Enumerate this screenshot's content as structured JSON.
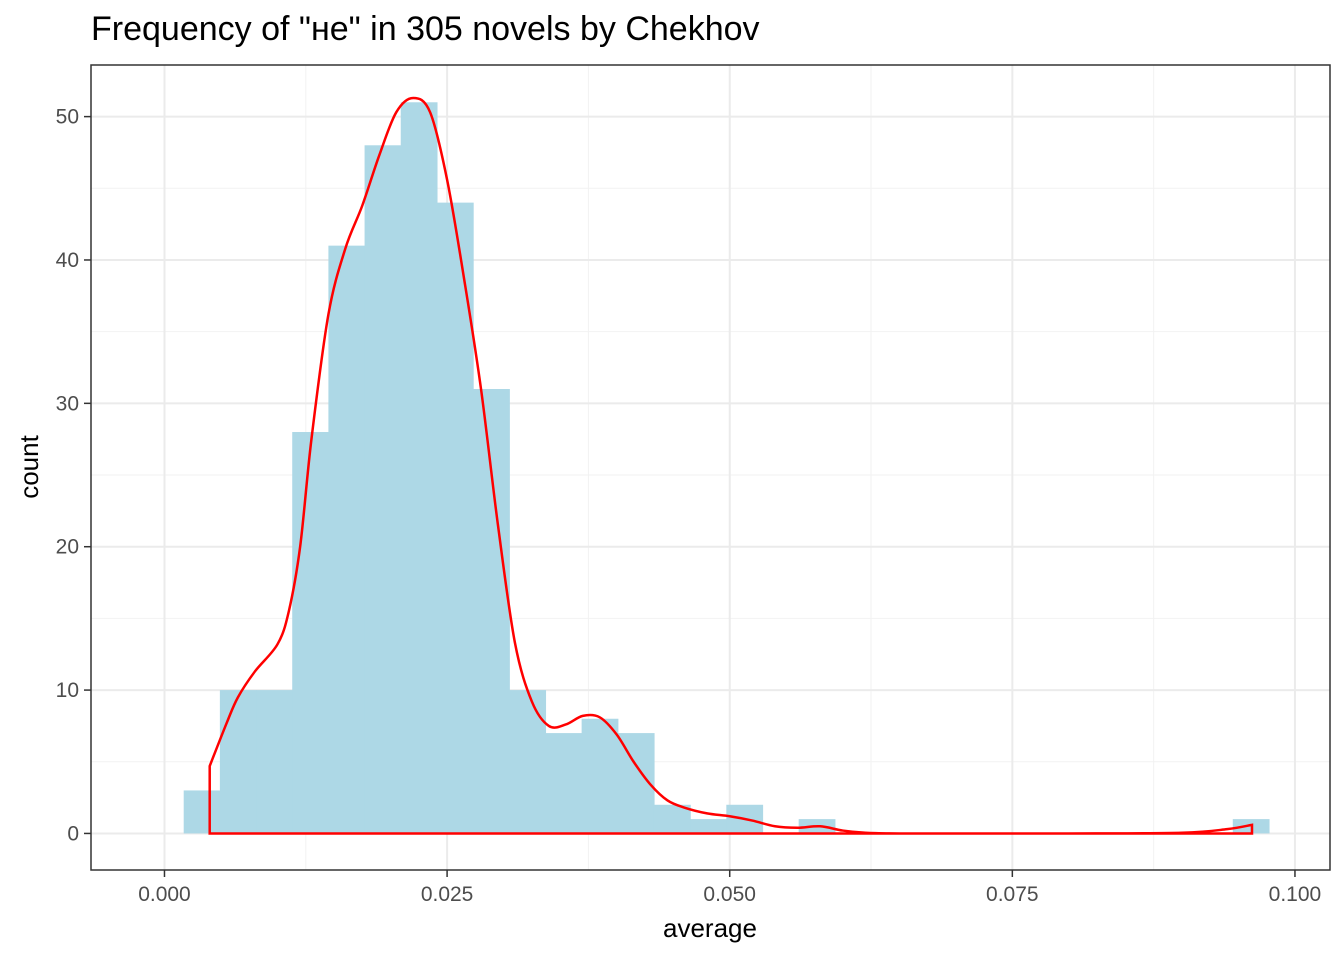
{
  "chart_data": {
    "type": "bar",
    "title": "Frequency of \"не\" in 305 novels by Chekhov",
    "xlabel": "average",
    "ylabel": "count",
    "xlim": [
      -0.0065,
      0.1031
    ],
    "ylim": [
      -2.55,
      53.6
    ],
    "x_ticks": [
      "0.000",
      "0.025",
      "0.050",
      "0.075",
      "0.100"
    ],
    "x_tick_values": [
      0,
      0.025,
      0.05,
      0.075,
      0.1
    ],
    "y_ticks": [
      "0",
      "10",
      "20",
      "30",
      "40",
      "50"
    ],
    "y_tick_values": [
      0,
      10,
      20,
      30,
      40,
      50
    ],
    "grid": true,
    "bin_width": 0.0032,
    "bins": [
      {
        "x0": 0.0017,
        "count": 3
      },
      {
        "x0": 0.0049,
        "count": 10
      },
      {
        "x0": 0.0081,
        "count": 10
      },
      {
        "x0": 0.0113,
        "count": 28
      },
      {
        "x0": 0.0145,
        "count": 41
      },
      {
        "x0": 0.0177,
        "count": 48
      },
      {
        "x0": 0.0209,
        "count": 51
      },
      {
        "x0": 0.0241,
        "count": 44
      },
      {
        "x0": 0.0273,
        "count": 31
      },
      {
        "x0": 0.0305,
        "count": 10
      },
      {
        "x0": 0.0337,
        "count": 7
      },
      {
        "x0": 0.0369,
        "count": 8
      },
      {
        "x0": 0.0401,
        "count": 7
      },
      {
        "x0": 0.0433,
        "count": 2
      },
      {
        "x0": 0.0465,
        "count": 1
      },
      {
        "x0": 0.0497,
        "count": 2
      },
      {
        "x0": 0.0529,
        "count": 0
      },
      {
        "x0": 0.0561,
        "count": 1
      },
      {
        "x0": 0.0945,
        "count": 1
      }
    ],
    "density_curve": {
      "color": "#ff0000",
      "x": [
        0.004,
        0.0055,
        0.0065,
        0.008,
        0.01,
        0.011,
        0.012,
        0.013,
        0.0145,
        0.016,
        0.0175,
        0.019,
        0.0205,
        0.022,
        0.0235,
        0.025,
        0.0265,
        0.028,
        0.0295,
        0.031,
        0.0325,
        0.034,
        0.0355,
        0.037,
        0.0385,
        0.04,
        0.0415,
        0.043,
        0.0445,
        0.046,
        0.048,
        0.05,
        0.052,
        0.054,
        0.056,
        0.058,
        0.06,
        0.062,
        0.065,
        0.07,
        0.08,
        0.09,
        0.094,
        0.0962
      ],
      "y": [
        4.7,
        7.7,
        9.5,
        11.3,
        13.2,
        15.5,
        20.0,
        27.5,
        36.2,
        40.8,
        43.8,
        47.3,
        50.3,
        51.3,
        50.3,
        45.6,
        38.7,
        31.0,
        21.5,
        13.3,
        9.2,
        7.5,
        7.6,
        8.2,
        8.1,
        6.9,
        5.0,
        3.4,
        2.3,
        1.8,
        1.4,
        1.2,
        0.9,
        0.5,
        0.4,
        0.5,
        0.2,
        0.05,
        0.0,
        0.0,
        0.0,
        0.05,
        0.3,
        0.6
      ]
    },
    "colors": {
      "bars": "#add8e6",
      "density": "#ff0000",
      "grid_major": "#ebebeb",
      "grid_minor": "#f2f2f2",
      "panel_border": "#333333"
    }
  }
}
